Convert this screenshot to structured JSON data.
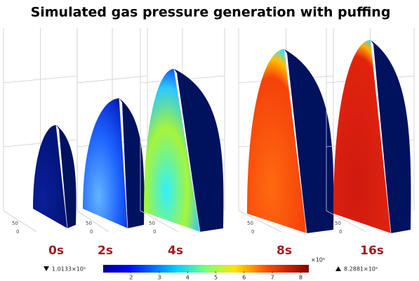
{
  "title": "Simulated gas pressure generation with puffing",
  "panels": [
    {
      "label": "0s",
      "axis_ticks": [
        "50",
        "0"
      ]
    },
    {
      "label": "2s",
      "axis_ticks": [
        "50",
        "0"
      ]
    },
    {
      "label": "4s",
      "axis_ticks": [
        "50",
        "0"
      ]
    },
    {
      "label": "8s",
      "axis_ticks": [
        "50",
        "0"
      ]
    },
    {
      "label": "16s",
      "axis_ticks": [
        "50",
        "0"
      ]
    }
  ],
  "colorbar": {
    "range": [
      1.0133,
      8.2881
    ],
    "ticks": [
      2,
      3,
      4,
      5,
      6,
      7,
      8
    ],
    "exponent_label": "×10⁵",
    "min_label": "1.0133×10⁵",
    "max_label": "8.2881×10⁵"
  }
}
